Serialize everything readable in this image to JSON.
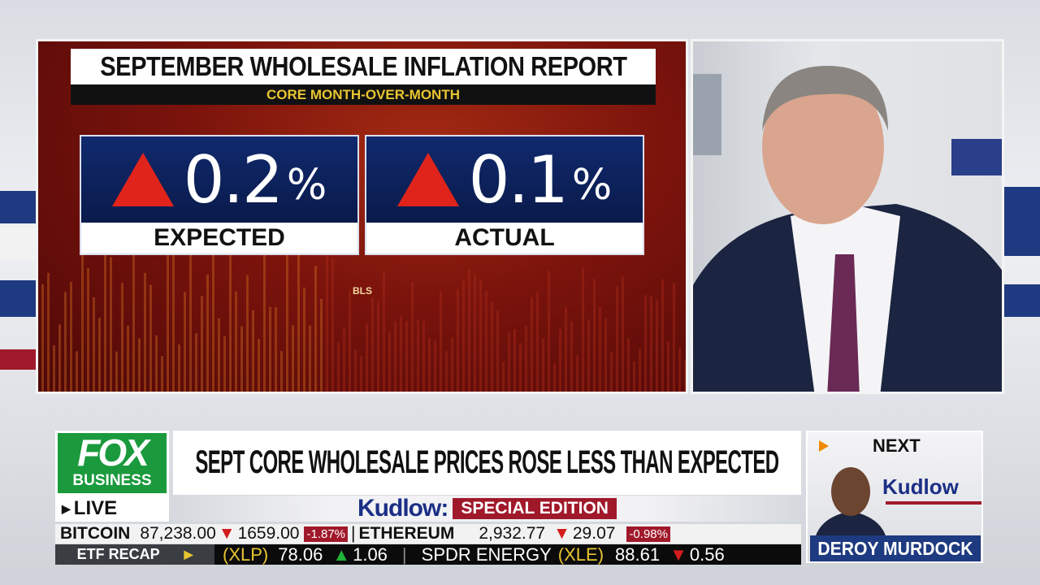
{
  "graphic": {
    "title": "SEPTEMBER WHOLESALE INFLATION REPORT",
    "subtitle": "CORE MONTH-OVER-MONTH",
    "stats": [
      {
        "label": "EXPECTED",
        "value": "0.2",
        "unit": "%",
        "direction": "up"
      },
      {
        "label": "ACTUAL",
        "value": "0.1",
        "unit": "%",
        "direction": "up"
      }
    ],
    "source": "BLS"
  },
  "logo": {
    "brand": "FOX",
    "sub": "BUSINESS"
  },
  "live": {
    "label": "LIVE"
  },
  "headline": "SEPT CORE WHOLESALE PRICES ROSE LESS THAN EXPECTED",
  "show": {
    "name": "Kudlow:",
    "edition": "SPECIAL EDITION"
  },
  "ticker1": [
    {
      "symbol": "BITCOIN",
      "price": "87,238.00",
      "change": "1659.00",
      "pct": "-1.87%",
      "direction": "down"
    },
    {
      "symbol": "ETHEREUM",
      "price": "2,932.77",
      "change": "29.07",
      "pct": "-0.98%",
      "direction": "down"
    }
  ],
  "ticker2": {
    "section": "ETF RECAP",
    "items": [
      {
        "name": "",
        "symbol": "(XLP)",
        "price": "78.06",
        "change": "1.06",
        "direction": "up"
      },
      {
        "name": "SPDR ENERGY",
        "symbol": "(XLE)",
        "price": "88.61",
        "change": "0.56",
        "direction": "down"
      }
    ]
  },
  "next": {
    "label": "NEXT",
    "show": "Kudlow",
    "guest": "DEROY MURDOCK"
  },
  "colors": {
    "fox_green": "#1a9a3c",
    "alert_red": "#a0192a",
    "up": "#22b33a",
    "down": "#d41c1c",
    "navy": "#1b2f86"
  }
}
